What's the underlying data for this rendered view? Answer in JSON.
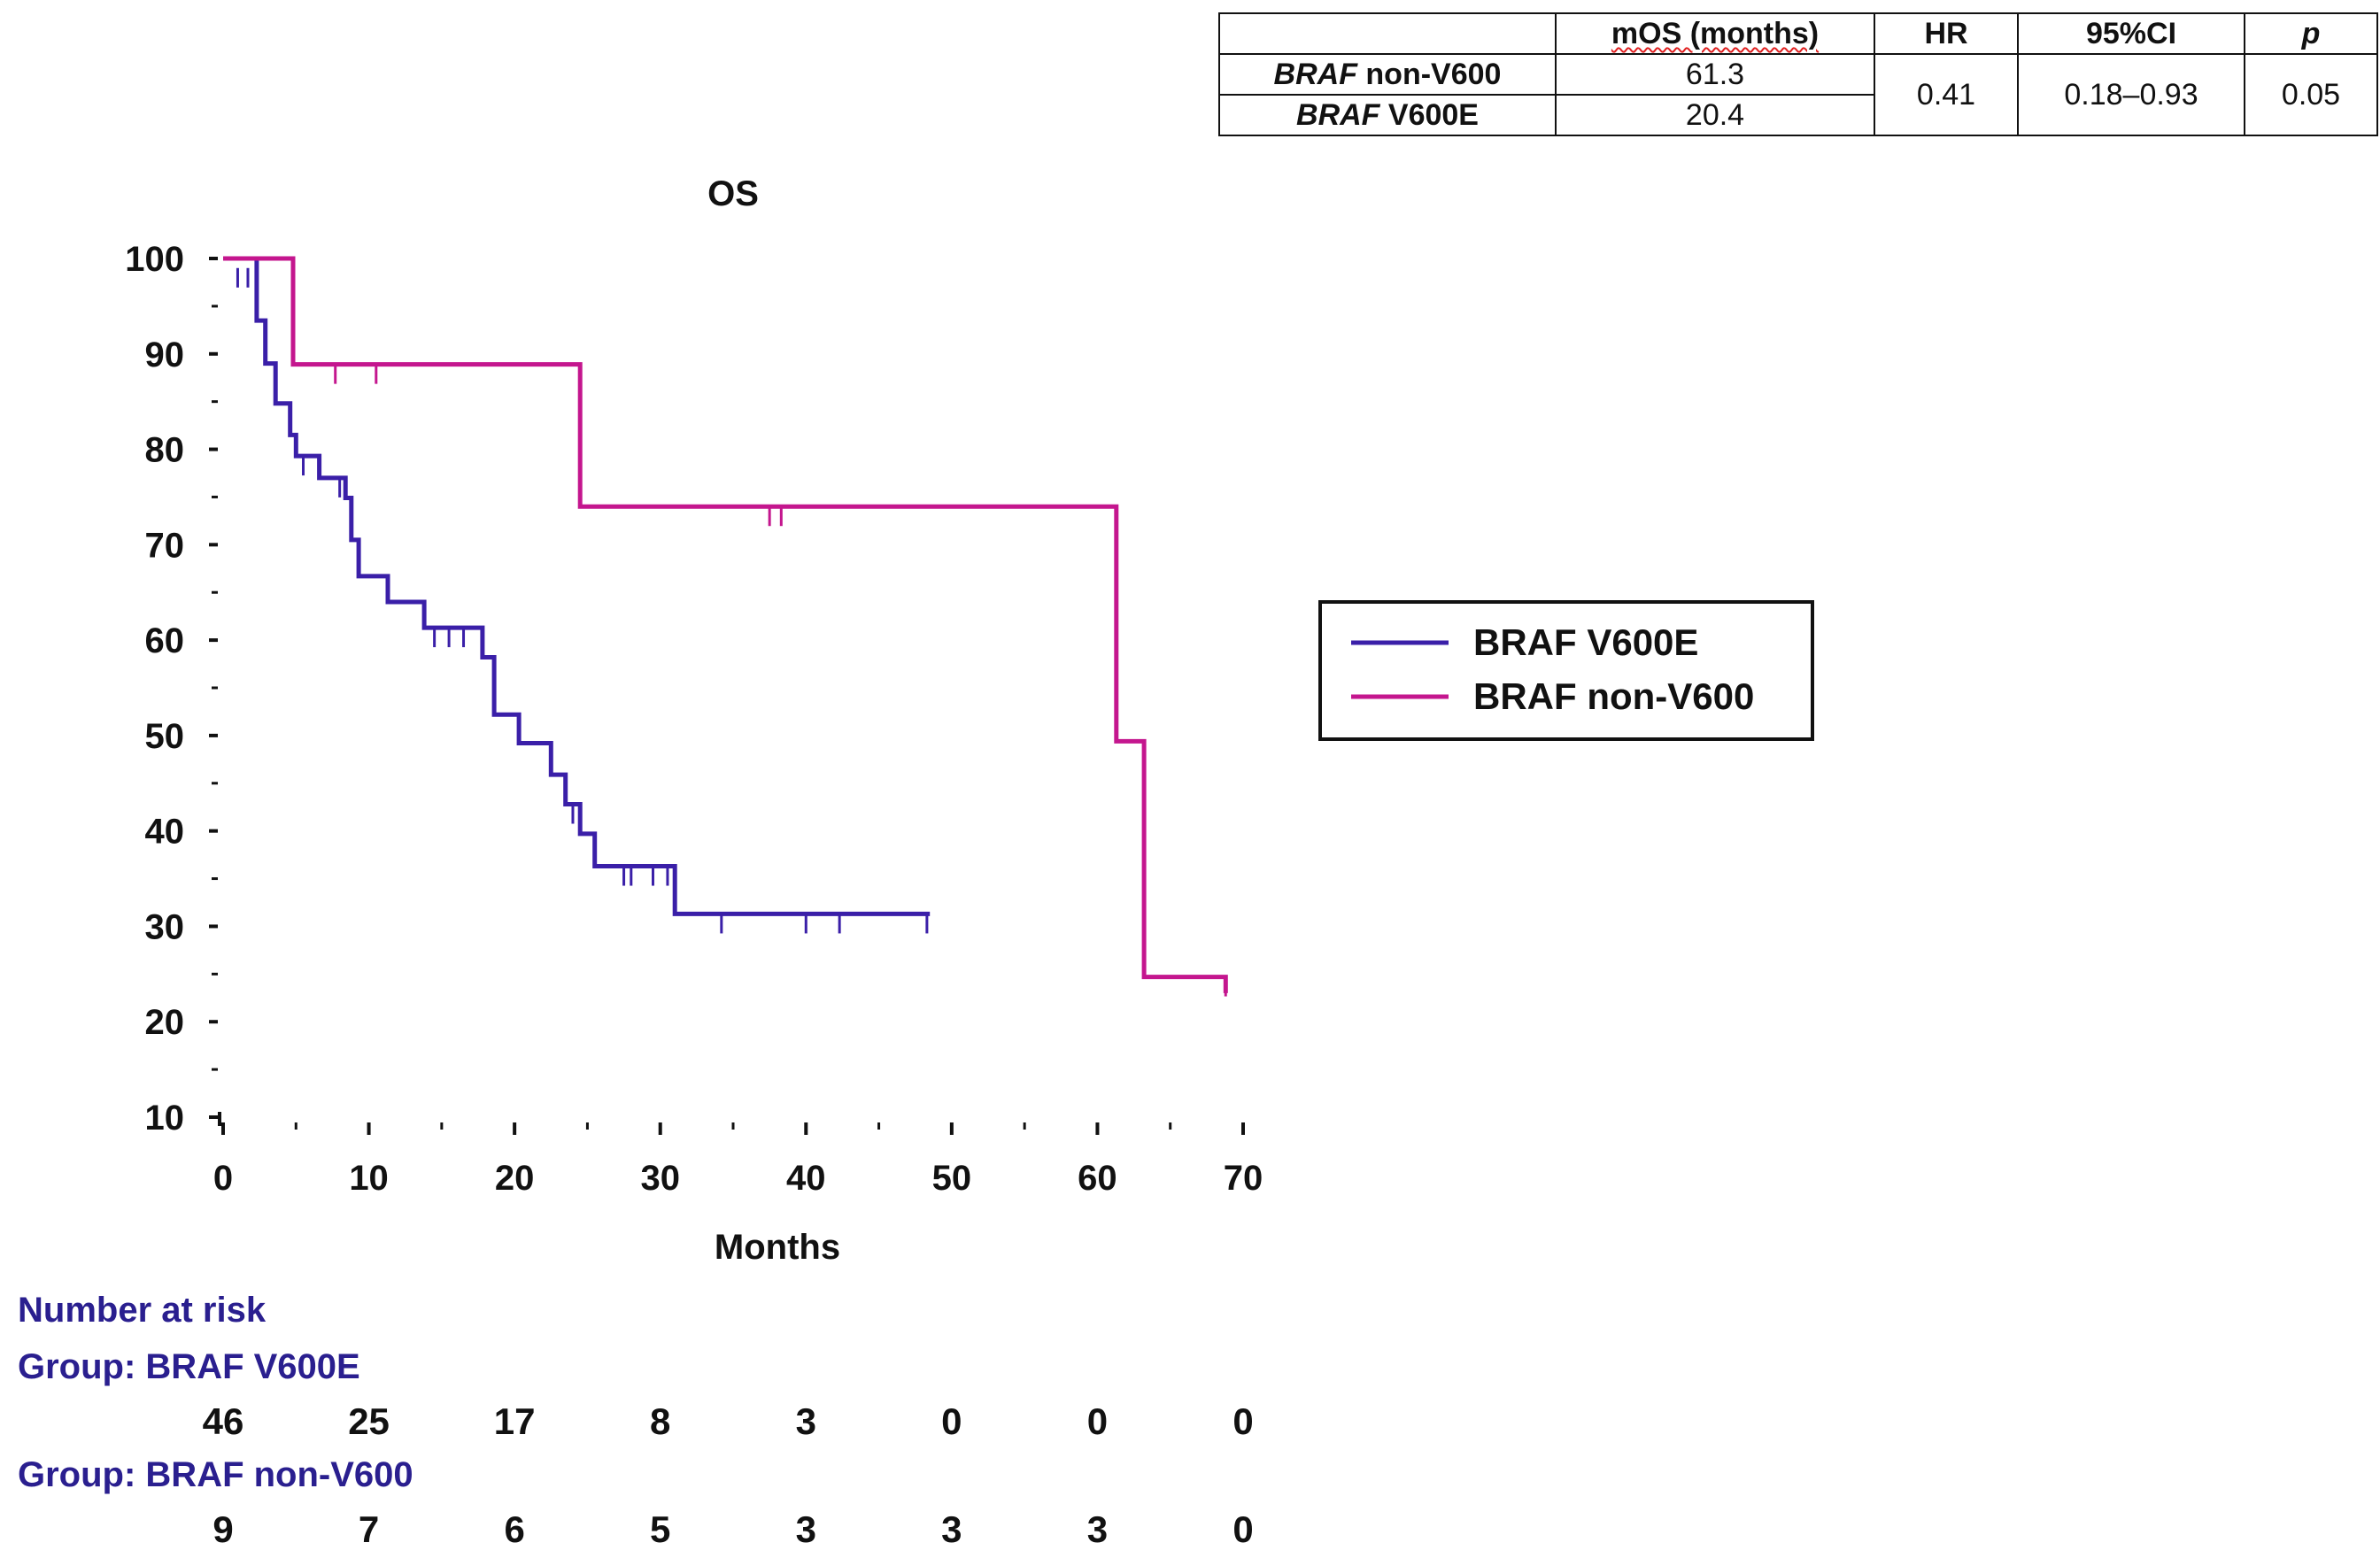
{
  "stats_table": {
    "headers": [
      "",
      "mOS (months)",
      "HR",
      "95%CI",
      "p"
    ],
    "rows": [
      {
        "label_gene": "BRAF",
        "label_rest": " non-V600",
        "mos": "61.3"
      },
      {
        "label_gene": "BRAF",
        "label_rest": " V600E",
        "mos": "20.4"
      }
    ],
    "hr": "0.41",
    "ci": "0.18–0.93",
    "p": "0.05"
  },
  "chart_data": {
    "type": "line",
    "title": "OS",
    "xlabel": "Months",
    "ylabel": "",
    "xlim": [
      0,
      70
    ],
    "ylim": [
      10,
      100
    ],
    "x_ticks": [
      0,
      10,
      20,
      30,
      40,
      50,
      60,
      70
    ],
    "y_ticks": [
      10,
      20,
      30,
      40,
      50,
      60,
      70,
      80,
      90,
      100
    ],
    "legend": {
      "position": "right",
      "entries": [
        "BRAF V600E",
        "BRAF non-V600"
      ]
    },
    "series": [
      {
        "name": "BRAF V600E",
        "color": "#3a1fa8",
        "steps": [
          [
            0,
            100
          ],
          [
            2.3,
            100
          ],
          [
            2.3,
            93.5
          ],
          [
            2.9,
            93.5
          ],
          [
            2.9,
            89
          ],
          [
            3.6,
            89
          ],
          [
            3.6,
            84.8
          ],
          [
            4.6,
            84.8
          ],
          [
            4.6,
            81.5
          ],
          [
            5,
            81.5
          ],
          [
            5,
            79.3
          ],
          [
            6.6,
            79.3
          ],
          [
            6.6,
            77
          ],
          [
            8.4,
            77
          ],
          [
            8.4,
            74.9
          ],
          [
            8.8,
            74.9
          ],
          [
            8.8,
            70.5
          ],
          [
            9.3,
            70.5
          ],
          [
            9.3,
            66.7
          ],
          [
            11.3,
            66.7
          ],
          [
            11.3,
            64
          ],
          [
            13.8,
            64
          ],
          [
            13.8,
            61.3
          ],
          [
            17.8,
            61.3
          ],
          [
            17.8,
            58.2
          ],
          [
            18.6,
            58.2
          ],
          [
            18.6,
            52.2
          ],
          [
            20.3,
            52.2
          ],
          [
            20.3,
            49.2
          ],
          [
            22.5,
            49.2
          ],
          [
            22.5,
            45.9
          ],
          [
            23.5,
            45.9
          ],
          [
            23.5,
            42.8
          ],
          [
            24.5,
            42.8
          ],
          [
            24.5,
            39.7
          ],
          [
            25.5,
            39.7
          ],
          [
            25.5,
            36.3
          ],
          [
            31,
            36.3
          ],
          [
            31,
            31.3
          ],
          [
            48.5,
            31.3
          ]
        ],
        "censored": [
          [
            1,
            99
          ],
          [
            1.7,
            99
          ],
          [
            5.5,
            79.3
          ],
          [
            8,
            77
          ],
          [
            14.5,
            61.3
          ],
          [
            15.5,
            61.3
          ],
          [
            16.5,
            61.3
          ],
          [
            24,
            42.8
          ],
          [
            27.5,
            36.3
          ],
          [
            28,
            36.3
          ],
          [
            29.5,
            36.3
          ],
          [
            30.5,
            36.3
          ],
          [
            34.2,
            31.3
          ],
          [
            40,
            31.3
          ],
          [
            42.3,
            31.3
          ],
          [
            48.3,
            31.3
          ]
        ]
      },
      {
        "name": "BRAF non-V600",
        "color": "#c4168e",
        "steps": [
          [
            0,
            100
          ],
          [
            4.8,
            100
          ],
          [
            4.8,
            88.9
          ],
          [
            24.5,
            88.9
          ],
          [
            24.5,
            74
          ],
          [
            61.3,
            74
          ],
          [
            61.3,
            49.4
          ],
          [
            63.2,
            49.4
          ],
          [
            63.2,
            24.7
          ],
          [
            68.8,
            24.7
          ],
          [
            68.8,
            23
          ]
        ],
        "censored": [
          [
            7.7,
            88.9
          ],
          [
            10.5,
            88.9
          ],
          [
            37.5,
            74
          ],
          [
            38.3,
            74
          ],
          [
            68.8,
            24.7
          ]
        ]
      }
    ]
  },
  "number_at_risk": {
    "title": "Number at risk",
    "groups": [
      {
        "label": "Group: BRAF V600E",
        "values": [
          "46",
          "25",
          "17",
          "8",
          "3",
          "0",
          "0",
          "0"
        ]
      },
      {
        "label": "Group: BRAF non-V600",
        "values": [
          "9",
          "7",
          "6",
          "5",
          "3",
          "3",
          "3",
          "0"
        ]
      }
    ]
  }
}
